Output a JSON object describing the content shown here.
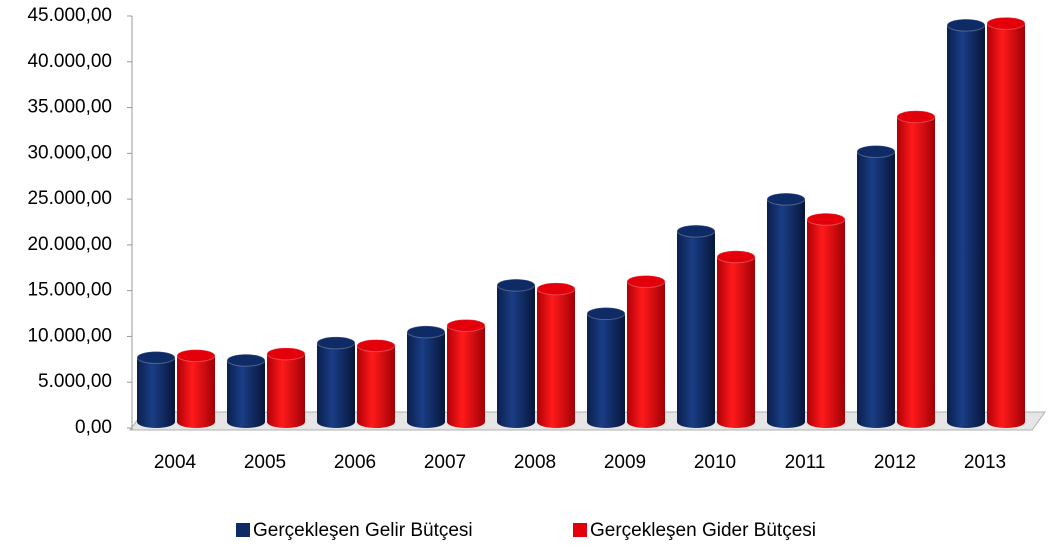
{
  "chart_data": {
    "type": "bar",
    "categories": [
      "2004",
      "2005",
      "2006",
      "2007",
      "2008",
      "2009",
      "2010",
      "2011",
      "2012",
      "2013"
    ],
    "series": [
      {
        "name": "Gerçekleşen Gelir Bütçesi",
        "color": "#0f2b66",
        "values": [
          7700,
          7400,
          9300,
          10500,
          15600,
          12500,
          21500,
          25000,
          30200,
          44000
        ]
      },
      {
        "name": "Gerçekleşen Gider Bütçesi",
        "color": "#e3000b",
        "values": [
          7900,
          8100,
          9000,
          11200,
          15200,
          16000,
          18700,
          22800,
          34000,
          44200
        ]
      }
    ],
    "ylim": [
      0,
      45000
    ],
    "yticks": [
      {
        "value": 0,
        "label": "0,00"
      },
      {
        "value": 5000,
        "label": "5.000,00"
      },
      {
        "value": 10000,
        "label": "10.000,00"
      },
      {
        "value": 15000,
        "label": "15.000,00"
      },
      {
        "value": 20000,
        "label": "20.000,00"
      },
      {
        "value": 25000,
        "label": "25.000,00"
      },
      {
        "value": 30000,
        "label": "30.000,00"
      },
      {
        "value": 35000,
        "label": "35.000,00"
      },
      {
        "value": 40000,
        "label": "40.000,00"
      },
      {
        "value": 45000,
        "label": "45.000,00"
      }
    ],
    "legend": "bottom"
  }
}
